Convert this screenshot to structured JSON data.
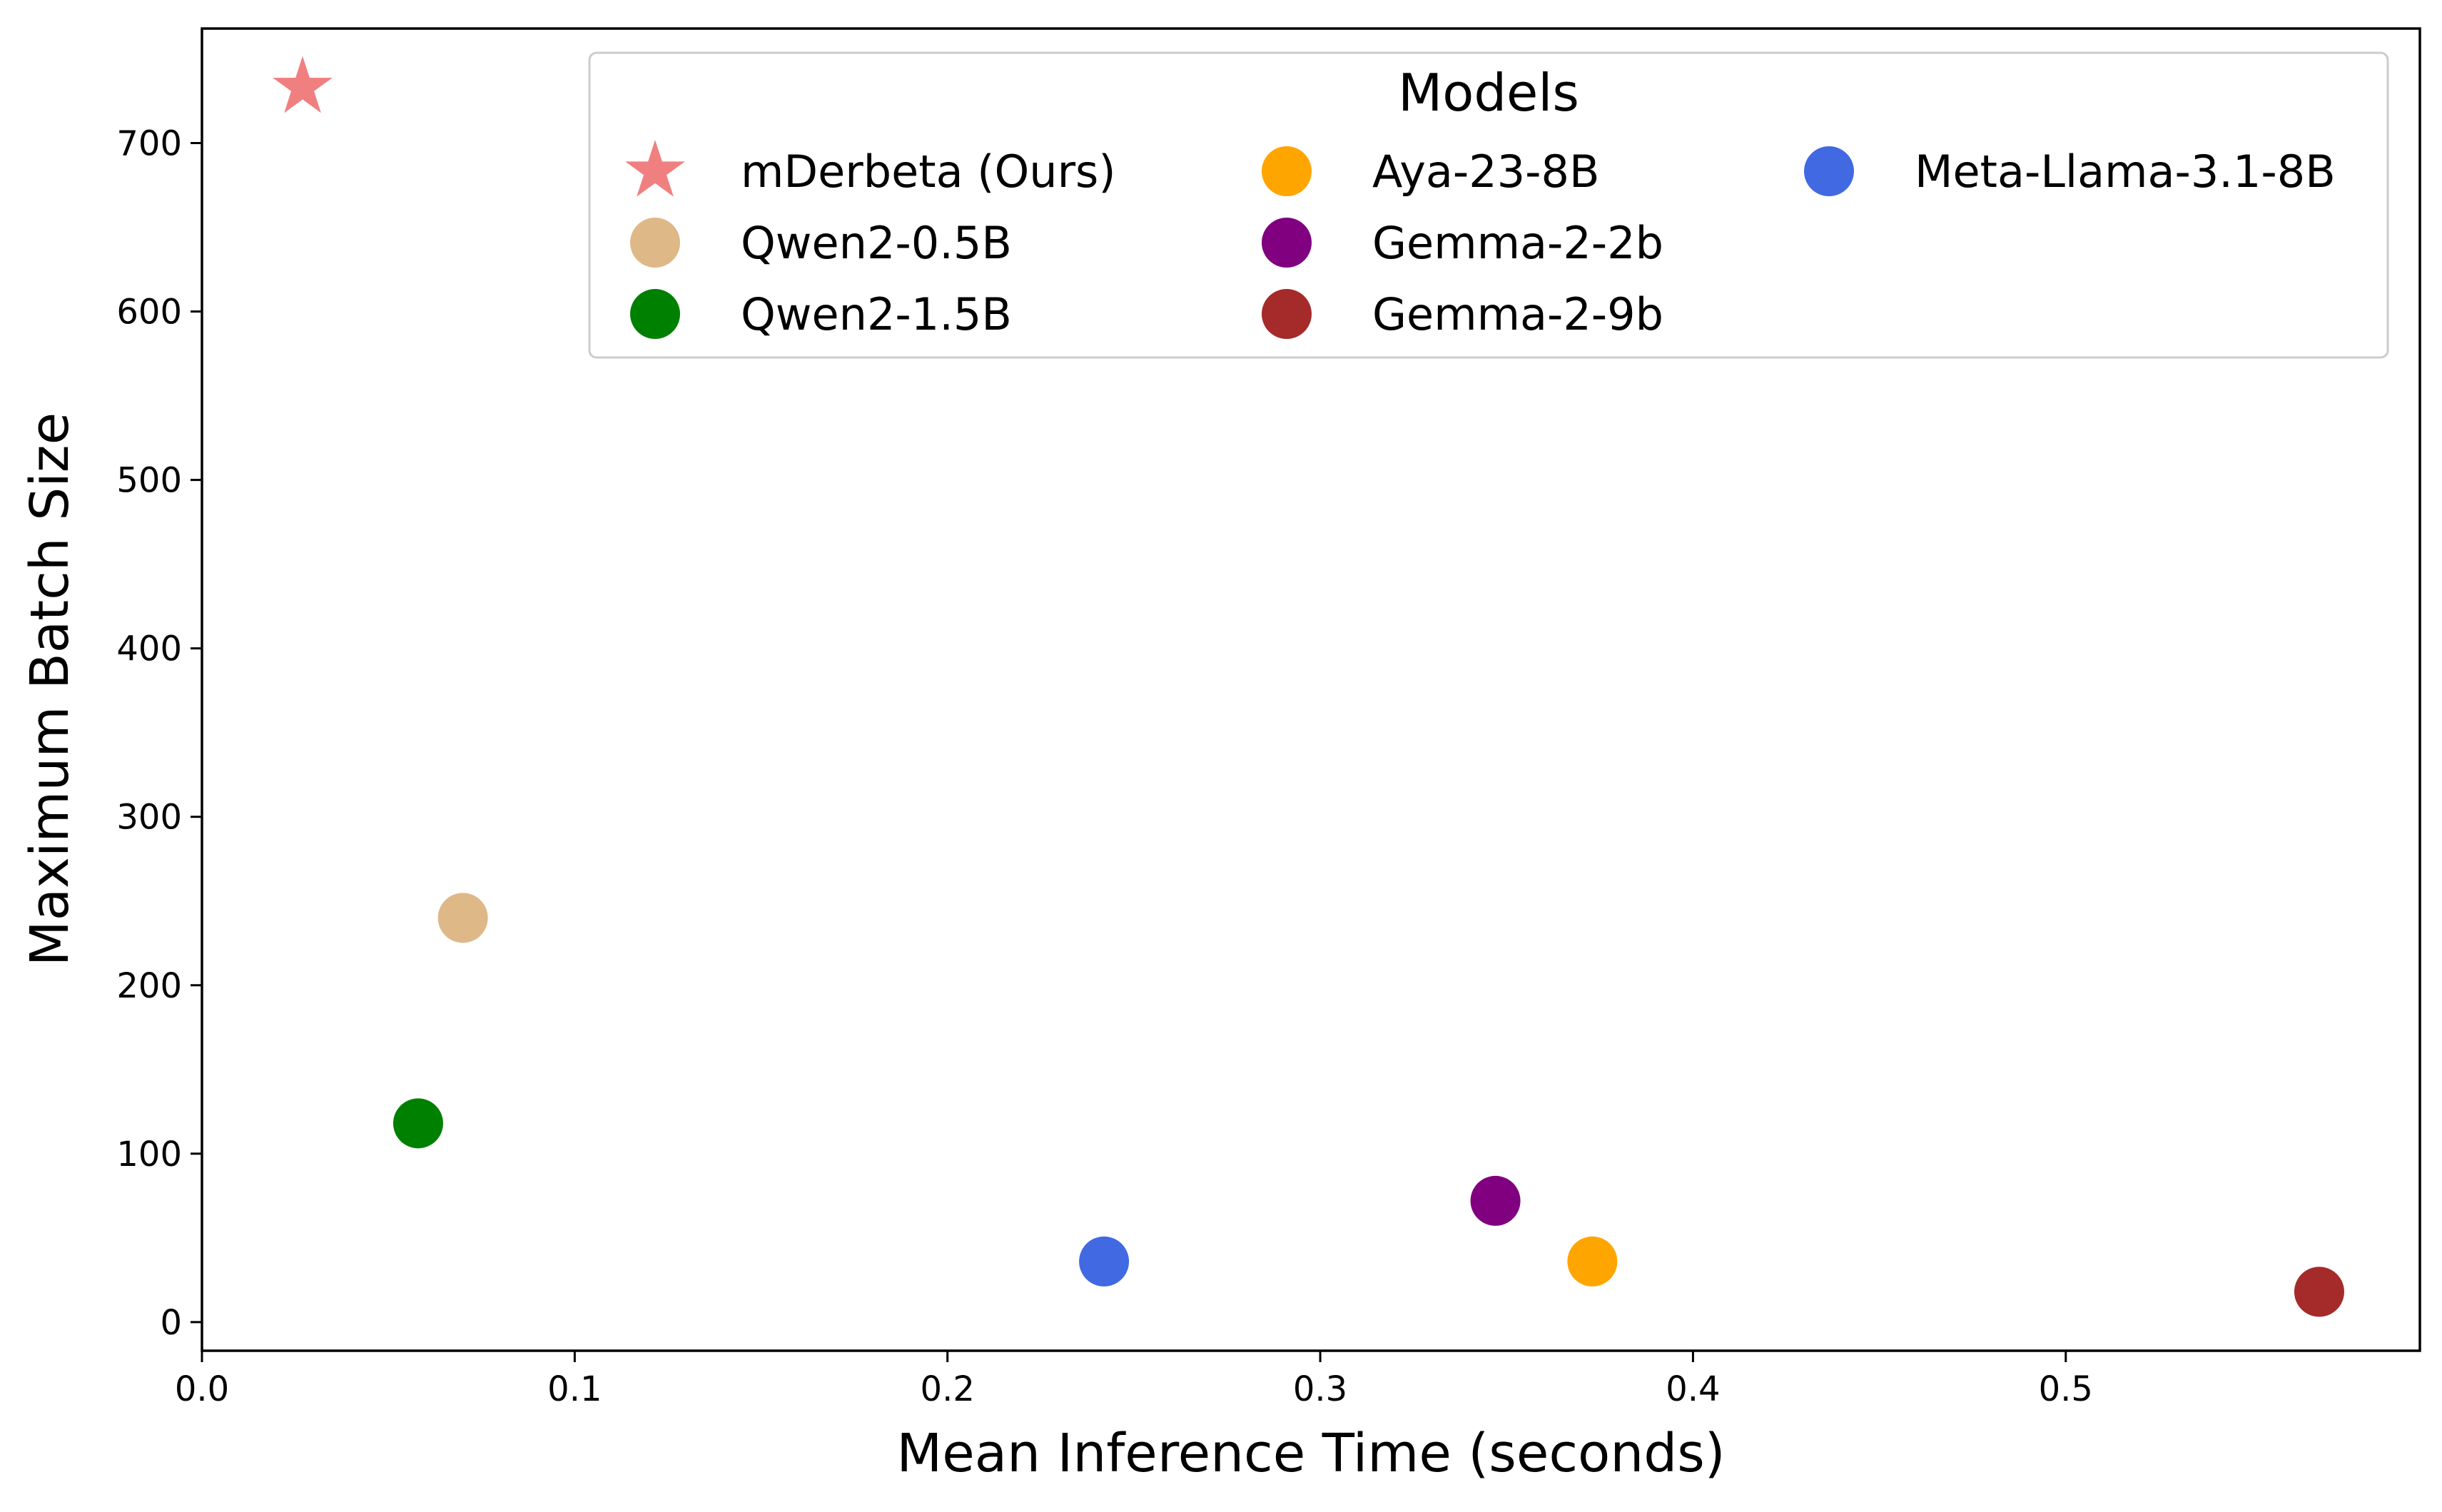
{
  "chart_data": {
    "type": "scatter",
    "xlabel": "Mean Inference Time (seconds)",
    "ylabel": "Maximum Batch Size",
    "xlim": [
      0.0,
      0.595
    ],
    "ylim": [
      -17,
      768
    ],
    "x_ticks": [
      0.0,
      0.1,
      0.2,
      0.3,
      0.4,
      0.5
    ],
    "x_tick_labels": [
      "0.0",
      "0.1",
      "0.2",
      "0.3",
      "0.4",
      "0.5"
    ],
    "y_ticks": [
      0,
      100,
      200,
      300,
      400,
      500,
      600,
      700
    ],
    "y_tick_labels": [
      "0",
      "100",
      "200",
      "300",
      "400",
      "500",
      "600",
      "700"
    ],
    "grid": false,
    "legend": {
      "title": "Models",
      "placement": "top-right",
      "columns": 3
    },
    "series": [
      {
        "name": "mDerbeta (Ours)",
        "marker": "star",
        "color": "#F08080",
        "x": 0.027,
        "y": 733
      },
      {
        "name": "Qwen2-0.5B",
        "marker": "circle",
        "color": "#DEB887",
        "x": 0.07,
        "y": 240
      },
      {
        "name": "Qwen2-1.5B",
        "marker": "circle",
        "color": "#008000",
        "x": 0.058,
        "y": 118
      },
      {
        "name": "Aya-23-8B",
        "marker": "circle",
        "color": "#FFA500",
        "x": 0.373,
        "y": 36
      },
      {
        "name": "Gemma-2-2b",
        "marker": "circle",
        "color": "#800080",
        "x": 0.347,
        "y": 72
      },
      {
        "name": "Gemma-2-9b",
        "marker": "circle",
        "color": "#A52A2A",
        "x": 0.568,
        "y": 18
      },
      {
        "name": "Meta-Llama-3.1-8B",
        "marker": "circle",
        "color": "#4169E1",
        "x": 0.242,
        "y": 36
      }
    ]
  }
}
